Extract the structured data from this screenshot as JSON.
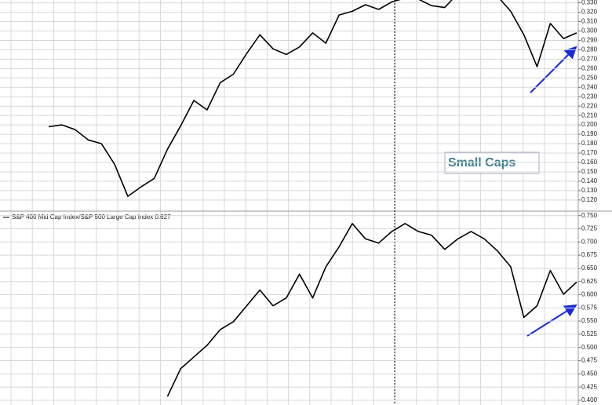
{
  "chart_data": [
    {
      "type": "line",
      "annotation": "Small Caps",
      "x": [
        0,
        1,
        2,
        3,
        4,
        5,
        6,
        7,
        8,
        9,
        10,
        11,
        12,
        13,
        14,
        15,
        16,
        17,
        18,
        19,
        20,
        21,
        22,
        23,
        24,
        25,
        26,
        27,
        28,
        29,
        30,
        31,
        32,
        33,
        34,
        35,
        36,
        37,
        38,
        39,
        40
      ],
      "xlim": [
        0,
        40
      ],
      "series": [
        {
          "color": "#000000",
          "values": [
            0.198,
            0.2,
            0.195,
            0.184,
            0.18,
            0.158,
            0.124,
            0.134,
            0.143,
            0.174,
            0.199,
            0.226,
            0.216,
            0.245,
            0.254,
            0.276,
            0.296,
            0.281,
            0.275,
            0.283,
            0.298,
            0.287,
            0.317,
            0.321,
            0.328,
            0.323,
            0.331,
            0.335,
            0.334,
            0.327,
            0.325,
            0.34,
            0.342,
            0.34,
            0.337,
            0.321,
            0.296,
            0.262,
            0.308,
            0.292,
            0.298
          ]
        }
      ],
      "ylim": [
        0.109,
        0.333
      ],
      "yticks": [
        {
          "value": 0.12,
          "label": "0.120"
        },
        {
          "value": 0.13,
          "label": "0.130"
        },
        {
          "value": 0.14,
          "label": "0.140"
        },
        {
          "value": 0.15,
          "label": "0.150"
        },
        {
          "value": 0.16,
          "label": "0.160"
        },
        {
          "value": 0.17,
          "label": "0.170"
        },
        {
          "value": 0.18,
          "label": "0.180"
        },
        {
          "value": 0.19,
          "label": "0.190"
        },
        {
          "value": 0.2,
          "label": "0.200"
        },
        {
          "value": 0.21,
          "label": "0.210"
        },
        {
          "value": 0.22,
          "label": "0.220"
        },
        {
          "value": 0.23,
          "label": "0.230"
        },
        {
          "value": 0.24,
          "label": "0.240"
        },
        {
          "value": 0.25,
          "label": "0.250"
        },
        {
          "value": 0.26,
          "label": "0.260"
        },
        {
          "value": 0.27,
          "label": "0.270"
        },
        {
          "value": 0.28,
          "label": "0.280"
        },
        {
          "value": 0.29,
          "label": "0.290"
        },
        {
          "value": 0.3,
          "label": "0.300"
        },
        {
          "value": 0.31,
          "label": "0.310"
        },
        {
          "value": 0.32,
          "label": "0.320"
        },
        {
          "value": 0.33,
          "label": "0.330"
        }
      ],
      "grid": true
    },
    {
      "type": "line",
      "x": [
        0,
        1,
        2,
        3,
        4,
        5,
        6,
        7,
        8,
        9,
        10,
        11,
        12,
        13,
        14,
        15,
        16,
        17,
        18,
        19,
        20,
        21,
        22,
        23,
        24,
        25,
        26,
        27,
        28,
        29,
        30,
        31,
        32,
        33,
        34,
        35,
        36,
        37,
        38,
        39,
        40
      ],
      "xlim": [
        0,
        40
      ],
      "series": [
        {
          "name": "S&P 400 Mid Cap Index/S&P 500 Large Cap Index 0.627",
          "color": "#000000",
          "values": [
            null,
            null,
            null,
            null,
            null,
            null,
            null,
            null,
            null,
            0.407,
            0.46,
            0.482,
            0.504,
            0.534,
            0.549,
            0.579,
            0.609,
            0.579,
            0.594,
            0.639,
            0.594,
            0.653,
            0.691,
            0.735,
            0.706,
            0.698,
            0.72,
            0.735,
            0.72,
            0.713,
            0.686,
            0.706,
            0.72,
            0.706,
            0.683,
            0.653,
            0.557,
            0.579,
            0.646,
            0.601,
            0.624
          ]
        }
      ],
      "ylim": [
        0.391,
        0.757
      ],
      "yticks": [
        {
          "value": 0.4,
          "label": "0.400"
        },
        {
          "value": 0.425,
          "label": "0.425"
        },
        {
          "value": 0.45,
          "label": "0.450"
        },
        {
          "value": 0.475,
          "label": "0.475"
        },
        {
          "value": 0.5,
          "label": "0.500"
        },
        {
          "value": 0.525,
          "label": "0.525"
        },
        {
          "value": 0.55,
          "label": "0.550"
        },
        {
          "value": 0.575,
          "label": "0.575"
        },
        {
          "value": 0.6,
          "label": "0.600"
        },
        {
          "value": 0.625,
          "label": "0.625"
        },
        {
          "value": 0.65,
          "label": "0.650"
        },
        {
          "value": 0.675,
          "label": "0.675"
        },
        {
          "value": 0.7,
          "label": "0.700"
        },
        {
          "value": 0.725,
          "label": "0.725"
        },
        {
          "value": 0.75,
          "label": "0.750"
        }
      ],
      "grid": true
    }
  ]
}
